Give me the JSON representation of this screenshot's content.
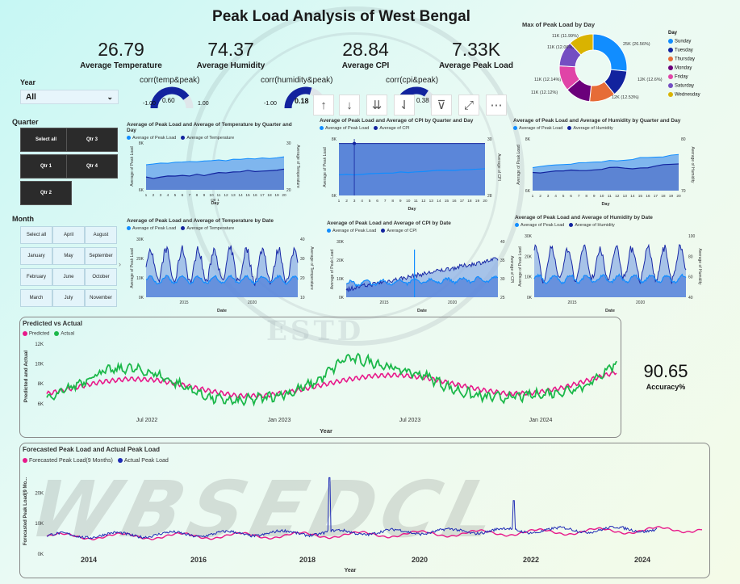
{
  "title": "Peak Load Analysis of West Bengal",
  "kpis": [
    {
      "value": "26.79",
      "label": "Average Temperature"
    },
    {
      "value": "74.37",
      "label": "Average Humidity"
    },
    {
      "value": "28.84",
      "label": "Average CPI"
    },
    {
      "value": "7.33K",
      "label": "Average Peak Load"
    }
  ],
  "gauges": [
    {
      "title": "corr(temp&peak)",
      "min": "-1.00",
      "max": "1.00",
      "value": "0.60",
      "fraction": 0.8
    },
    {
      "title": "corr(humidity&peak)",
      "min": "-1.00",
      "max": "",
      "value": "0.18",
      "fraction": 0.59
    },
    {
      "title": "corr(cpi&peak)",
      "min": "",
      "max": "",
      "value": "0.38",
      "fraction": 0.69
    }
  ],
  "year_slicer": {
    "label": "Year",
    "value": "All"
  },
  "quarter": {
    "label": "Quarter",
    "buttons": [
      "Select all",
      "Qtr 3",
      "Qtr 1",
      "Qtr 4",
      "Qtr 2"
    ]
  },
  "month": {
    "label": "Month",
    "buttons": [
      "Select all",
      "April",
      "August",
      "January",
      "May",
      "September",
      "February",
      "June",
      "October",
      "March",
      "July",
      "November"
    ]
  },
  "toolbar": {
    "icons": [
      "arrow-up-icon",
      "arrow-down-icon",
      "double-arrow-down-icon",
      "expand-hierarchy-icon",
      "filter-icon",
      "focus-mode-icon",
      "more-options-icon"
    ]
  },
  "donut": {
    "title": "Max of Peak Load by Day",
    "legend_title": "Day",
    "slices": [
      {
        "day": "Sunday",
        "label": "25K (26.56%)",
        "pct": 26.56,
        "color": "#118dff"
      },
      {
        "day": "Tuesday",
        "label": "12K (12.6%)",
        "pct": 12.6,
        "color": "#12239e"
      },
      {
        "day": "Thursday",
        "label": "12K (12.53%)",
        "pct": 12.53,
        "color": "#e66c37"
      },
      {
        "day": "Monday",
        "label": "11K (12.14%)",
        "pct": 12.14,
        "color": "#6b007b"
      },
      {
        "day": "Friday",
        "label": "11K (12.12%)",
        "pct": 12.12,
        "color": "#e044a7"
      },
      {
        "day": "Saturday",
        "label": "11K (12.06%)",
        "pct": 12.06,
        "color": "#744ec2"
      },
      {
        "day": "Wednesday",
        "label": "11K (11.99%)",
        "pct": 11.99,
        "color": "#d9b300"
      }
    ]
  },
  "small_charts": {
    "quarter_temp": {
      "title": "Average of Peak Load and Average of Temperature by Quarter and Day",
      "legend": [
        "Average of Peak Load",
        "Average of Temperature"
      ],
      "xlabel": "Day",
      "sub_xlabel": "Qtr 1",
      "ylabel": "Average of Peak Load",
      "y2label": "Average of Temperature",
      "yticks": [
        "6K",
        "8K"
      ],
      "y2ticks": [
        "20",
        "30"
      ]
    },
    "quarter_cpi": {
      "title": "Average of Peak Load and Average of CPI by Quarter and Day",
      "legend": [
        "Average of Peak Load",
        "Average of CPI"
      ],
      "xlabel": "Day",
      "ylabel": "Average of Peak Load",
      "y2label": "Average of CPI",
      "yticks": [
        "6K",
        "8K"
      ],
      "y2ticks": [
        "28",
        "30"
      ]
    },
    "quarter_hum": {
      "title": "Average of Peak Load and Average of Humidity by Quarter and Day",
      "legend": [
        "Average of Peak Load",
        "Average of Humidity"
      ],
      "xlabel": "Day",
      "ylabel": "Average of Peak Load",
      "y2label": "Average of Humidity",
      "yticks": [
        "6K",
        "8K"
      ],
      "y2ticks": [
        "70",
        "80"
      ]
    },
    "date_temp": {
      "title": "Average of Peak Load and Average of Temperature by Date",
      "legend": [
        "Average of Peak Load",
        "Average of Temperature"
      ],
      "xlabel": "Date",
      "ylabel": "Average of Peak Load",
      "y2label": "Average of Temperature",
      "yticks": [
        "0K",
        "10K",
        "20K",
        "30K"
      ],
      "y2ticks": [
        "10",
        "20",
        "30",
        "40"
      ],
      "xticks": [
        "2015",
        "2020"
      ]
    },
    "date_cpi": {
      "title": "Average of Peak Load and Average of CPI by Date",
      "legend": [
        "Average of Peak Load",
        "Average of CPI"
      ],
      "xlabel": "Date",
      "ylabel": "Average of Peak Load",
      "y2label": "Average of CPI",
      "yticks": [
        "0K",
        "10K",
        "20K",
        "30K"
      ],
      "y2ticks": [
        "25",
        "30",
        "35",
        "40"
      ],
      "xticks": [
        "2015",
        "2020"
      ]
    },
    "date_hum": {
      "title": "Average of Peak Load and Average of Humidity by Date",
      "legend": [
        "Average of Peak Load",
        "Average of Humidity"
      ],
      "xlabel": "Date",
      "ylabel": "Average of Peak Load",
      "y2label": "Average of Humidity",
      "yticks": [
        "0K",
        "10K",
        "20K",
        "30K"
      ],
      "y2ticks": [
        "40",
        "60",
        "80",
        "100"
      ],
      "xticks": [
        "2015",
        "2020"
      ]
    }
  },
  "chart_data": [
    {
      "type": "line",
      "title": "Predicted vs Actual",
      "xlabel": "Year",
      "ylabel": "Predicted and Actual",
      "series": [
        {
          "name": "Predicted",
          "color": "#e8188a"
        },
        {
          "name": "Actual",
          "color": "#1cb84a"
        }
      ],
      "xticks": [
        "Jul 2022",
        "Jan 2023",
        "Jul 2023",
        "Jan 2024"
      ],
      "yticks": [
        "6K",
        "8K",
        "10K",
        "12K"
      ],
      "ylim": [
        5500,
        12000
      ],
      "x_range": [
        "2022-01",
        "2024-09"
      ],
      "predicted_profile": [
        7.0,
        7.6,
        8.2,
        8.5,
        8.4,
        7.9,
        7.3,
        6.8,
        6.8,
        7.2,
        7.8,
        8.4,
        8.8,
        8.9,
        8.6,
        8.0,
        7.4,
        7.0,
        7.1,
        7.6,
        8.4,
        9.2
      ],
      "actual_profile": [
        6.3,
        7.8,
        9.2,
        9.6,
        9.0,
        7.8,
        6.6,
        6.2,
        6.6,
        7.1,
        8.3,
        10.6,
        10.2,
        9.4,
        8.8,
        7.4,
        6.7,
        6.6,
        6.9,
        7.2,
        8.0,
        10.2
      ]
    },
    {
      "type": "line",
      "title": "Forecasted Peak Load and Actual Peak Load",
      "xlabel": "Year",
      "ylabel": "Forecasted Peak Load(9 Mo...",
      "series": [
        {
          "name": "Forecasted Peak Load(9 Months)",
          "color": "#e8188a"
        },
        {
          "name": "Actual Peak Load",
          "color": "#1f2bb5"
        }
      ],
      "xticks": [
        "2014",
        "2016",
        "2018",
        "2020",
        "2022",
        "2024"
      ],
      "yticks": [
        "0K",
        "10K",
        "20K"
      ],
      "ylim": [
        0,
        28000
      ],
      "x_range": [
        "2013",
        "2025"
      ]
    }
  ],
  "accuracy": {
    "value": "90.65",
    "label": "Accuracy%"
  }
}
